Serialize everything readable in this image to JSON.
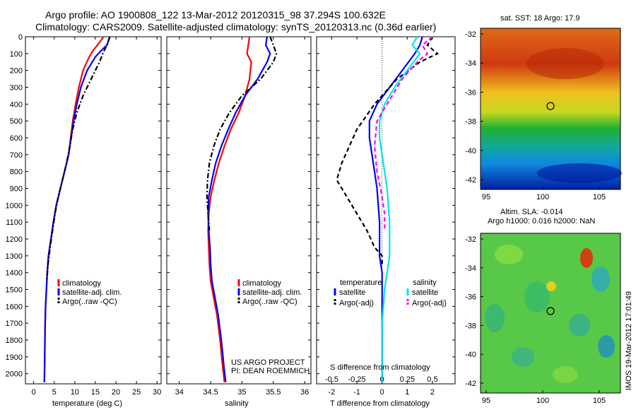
{
  "header": {
    "line1": "Argo profile: AO 1900808_122 13-Mar-2012 20120315_98 37.294S 100.632E",
    "line2": "Climatology: CARS2009. Satellite-adjusted climatology: synTS_20120313.nc (0.36d earlier)"
  },
  "depth_ticks": [
    0,
    100,
    200,
    300,
    400,
    500,
    600,
    700,
    800,
    900,
    1000,
    1100,
    1200,
    1300,
    1400,
    1500,
    1600,
    1700,
    1800,
    1900,
    2000
  ],
  "chart_data": [
    {
      "type": "line",
      "id": "temperature",
      "xlabel": "temperature (deg C)",
      "xlim": [
        -2,
        31
      ],
      "ylim": [
        0,
        2060
      ],
      "xticks": [
        0,
        5,
        10,
        15,
        20,
        25,
        30
      ],
      "legend": [
        "climatology",
        "satellite-adj. clim.",
        "Argo(..raw -QC)"
      ],
      "series": [
        {
          "name": "climatology",
          "color": "#ff0000",
          "dash": "solid",
          "x": [
            17,
            15.5,
            14.5,
            13.5,
            12,
            11,
            10.2,
            9.5,
            9,
            8.5,
            7.5,
            6.5,
            5.5,
            4.8,
            4.2,
            3.6,
            3.3,
            3.1,
            2.9,
            2.8,
            2.7,
            2.6
          ],
          "y": [
            0,
            50,
            80,
            120,
            200,
            300,
            400,
            500,
            600,
            700,
            800,
            900,
            1000,
            1100,
            1200,
            1300,
            1400,
            1500,
            1600,
            1700,
            1900,
            2050
          ]
        },
        {
          "name": "satellite-adj. clim.",
          "color": "#0000ff",
          "dash": "solid",
          "x": [
            18.5,
            17.8,
            16.5,
            15,
            13,
            11.5,
            10.5,
            9.7,
            9.1,
            8.5,
            7.5,
            6.5,
            5.5,
            4.8,
            4.2,
            3.6,
            3.3,
            3.1,
            2.9,
            2.8,
            2.7,
            2.6
          ],
          "y": [
            0,
            50,
            80,
            120,
            200,
            300,
            400,
            500,
            600,
            700,
            800,
            900,
            1000,
            1100,
            1200,
            1300,
            1400,
            1500,
            1600,
            1700,
            1900,
            2050
          ]
        },
        {
          "name": "Argo(..raw -QC)",
          "color": "#000000",
          "dash": "dashdot",
          "x": [
            18.5,
            18,
            17,
            16,
            14,
            12,
            10.5,
            9.5,
            8.8,
            8,
            7,
            6,
            5.2,
            4.6,
            4,
            3.5,
            3.2
          ],
          "y": [
            0,
            40,
            90,
            150,
            250,
            350,
            450,
            550,
            650,
            750,
            850,
            950,
            1050,
            1150,
            1250,
            1350,
            1450
          ]
        }
      ]
    },
    {
      "type": "line",
      "id": "salinity",
      "xlabel": "salinity",
      "xlim": [
        33.8,
        36.1
      ],
      "ylim": [
        0,
        2060
      ],
      "xticks": [
        34,
        34.5,
        35,
        35.5,
        36
      ],
      "legend": [
        "climatology",
        "satellite-adj. clim.",
        "Argo(..raw -QC)"
      ],
      "series": [
        {
          "name": "climatology",
          "color": "#ff0000",
          "dash": "solid",
          "x": [
            35.12,
            35.1,
            35.08,
            35.15,
            35.12,
            35.05,
            34.95,
            34.82,
            34.72,
            34.63,
            34.56,
            34.5,
            34.47,
            34.46,
            34.47,
            34.48,
            34.5,
            34.55,
            34.6,
            34.65,
            34.69,
            34.72
          ],
          "y": [
            0,
            50,
            100,
            150,
            250,
            350,
            450,
            550,
            650,
            750,
            850,
            950,
            1050,
            1150,
            1250,
            1350,
            1450,
            1550,
            1650,
            1800,
            1950,
            2050
          ]
        },
        {
          "name": "satellite-adj. clim.",
          "color": "#0000ff",
          "dash": "solid",
          "x": [
            35.4,
            35.38,
            35.45,
            35.4,
            35.25,
            35.05,
            34.9,
            34.78,
            34.67,
            34.58,
            34.52,
            34.47,
            34.46,
            34.47,
            34.49,
            34.5,
            34.52,
            34.57,
            34.62,
            34.67,
            34.71,
            34.74
          ],
          "y": [
            0,
            50,
            100,
            150,
            250,
            350,
            450,
            550,
            650,
            750,
            850,
            950,
            1050,
            1150,
            1250,
            1350,
            1450,
            1550,
            1650,
            1800,
            1950,
            2050
          ]
        },
        {
          "name": "Argo(..raw -QC)",
          "color": "#000000",
          "dash": "dashdot",
          "x": [
            35.45,
            35.5,
            35.55,
            35.5,
            35.3,
            35.0,
            34.8,
            34.65,
            34.55,
            34.48,
            34.45,
            34.44,
            34.46,
            34.48
          ],
          "y": [
            0,
            50,
            100,
            150,
            250,
            350,
            450,
            550,
            650,
            750,
            850,
            950,
            1050,
            1150
          ]
        }
      ]
    },
    {
      "type": "line",
      "id": "difference",
      "xlabel": "T difference from climatology",
      "xlabel_top": "S difference from climatology",
      "xlim": [
        -2.6,
        2.9
      ],
      "ylim": [
        0,
        2060
      ],
      "xticks": [
        -2,
        -1,
        0,
        1,
        2
      ],
      "xticks_top": [
        "-0.5",
        "-0.25",
        "0",
        "0.25",
        "0.5"
      ],
      "legend_header": [
        "temperature",
        "salinity"
      ],
      "legend": [
        "satellite",
        "Argo(-adj)",
        "satellite",
        "Argo(-adj)"
      ],
      "series": [
        {
          "name": "satellite",
          "color": "#0000ff",
          "dash": "solid",
          "x": [
            1.6,
            1.5,
            1.3,
            0.8,
            0.3,
            -0.2,
            -0.5,
            -0.5,
            -0.4,
            -0.3,
            -0.2,
            -0.1,
            -0.1,
            0,
            0,
            0,
            0,
            0
          ],
          "y": [
            0,
            50,
            100,
            200,
            300,
            400,
            500,
            600,
            700,
            800,
            900,
            1100,
            1300,
            1400,
            1500,
            1600,
            1800,
            2050
          ]
        },
        {
          "name": "Argo(-adj)",
          "color": "#000000",
          "dash": "dashed",
          "x": [
            2.0,
            1.8,
            2.2,
            1.5,
            0.6,
            -0.3,
            -1.0,
            -1.6,
            -1.8,
            -1.2,
            -0.6,
            -0.3,
            0,
            0
          ],
          "y": [
            0,
            50,
            100,
            150,
            250,
            400,
            550,
            750,
            850,
            1000,
            1150,
            1250,
            1300,
            1350
          ]
        },
        {
          "name": "satellite",
          "color": "#00e6e6",
          "dash": "solid",
          "x": [
            1.4,
            1.2,
            1.5,
            1.0,
            0.5,
            0.1,
            -0.1,
            -0.1,
            0,
            0.1,
            0.2,
            0.3,
            0.3,
            0.3,
            0.2,
            0.1,
            0,
            0
          ],
          "y": [
            0,
            50,
            100,
            200,
            300,
            400,
            500,
            600,
            700,
            800,
            900,
            1100,
            1200,
            1300,
            1400,
            1500,
            1700,
            2050
          ]
        },
        {
          "name": "Argo(-adj)",
          "color": "#ff00ff",
          "dash": "dashed",
          "x": [
            2.0,
            1.6,
            1.8,
            1.4,
            0.8,
            0.2,
            -0.2,
            -0.3,
            -0.2,
            0,
            0.1,
            0.1
          ],
          "y": [
            0,
            50,
            100,
            150,
            250,
            400,
            500,
            650,
            800,
            950,
            1050,
            1150
          ]
        }
      ]
    }
  ],
  "annotations": {
    "project": "US ARGO PROJECT",
    "pi": "PI: DEAN ROEMMICH"
  },
  "maps": [
    {
      "title": "sat. SST: 18 Argo: 17.9",
      "yticks": [
        "-32",
        "-34",
        "-36",
        "-38",
        "-40",
        "-42"
      ],
      "xticks": [
        "95",
        "100",
        "105"
      ]
    },
    {
      "title1": "Altim. SLA: -0.014",
      "title2": "Argo h1000: 0.016 h2000: NaN",
      "yticks": [
        "-32",
        "-34",
        "-36",
        "-38",
        "-40",
        "-42"
      ],
      "xticks": [
        "95",
        "100",
        "105"
      ]
    }
  ],
  "credit": "IMOS 19-Mar-2012 17:01:49"
}
